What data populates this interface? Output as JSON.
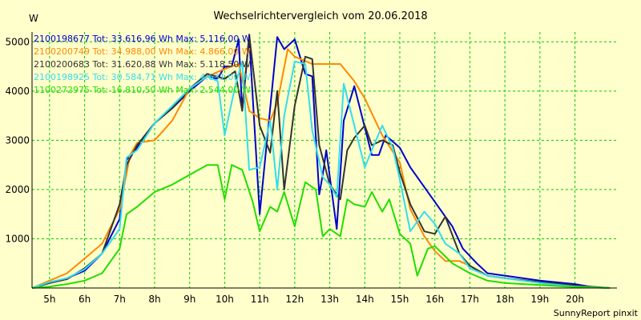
{
  "chart_data": {
    "type": "line",
    "title": "Wechselrichtervergleich vom 20.06.2018",
    "yunit": "W",
    "footer": "SunnyReport pinxit",
    "ylim": [
      0,
      5200
    ],
    "xlim": [
      4.5,
      21.2
    ],
    "grid": true,
    "legend_position": "top-left",
    "x_ticks": [
      5,
      6,
      7,
      8,
      9,
      10,
      11,
      12,
      13,
      14,
      15,
      16,
      17,
      18,
      19,
      20
    ],
    "x_tick_labels": [
      "5h",
      "6h",
      "7h",
      "8h",
      "9h",
      "10h",
      "11h",
      "12h",
      "13h",
      "14h",
      "15h",
      "16h",
      "17h",
      "18h",
      "19h",
      "20h"
    ],
    "y_ticks": [
      1000,
      2000,
      3000,
      4000,
      5000
    ],
    "y_tick_labels": [
      "1000",
      "2000",
      "3000",
      "4000",
      "5000"
    ],
    "series": [
      {
        "name": "2100198677 Tot: 33.616,96 Wh Max: 5.116,00 W",
        "color": "#0000cc",
        "points": [
          [
            4.5,
            0
          ],
          [
            5,
            100
          ],
          [
            5.5,
            200
          ],
          [
            6,
            350
          ],
          [
            6.5,
            700
          ],
          [
            7,
            1400
          ],
          [
            7.2,
            2600
          ],
          [
            7.5,
            2850
          ],
          [
            8,
            3350
          ],
          [
            8.5,
            3650
          ],
          [
            9,
            4000
          ],
          [
            9.5,
            4300
          ],
          [
            9.8,
            4250
          ],
          [
            10,
            4500
          ],
          [
            10.2,
            4500
          ],
          [
            10.4,
            5050
          ],
          [
            10.5,
            3600
          ],
          [
            10.7,
            5100
          ],
          [
            11,
            1500
          ],
          [
            11.5,
            5100
          ],
          [
            11.7,
            4850
          ],
          [
            12,
            5050
          ],
          [
            12.3,
            4350
          ],
          [
            12.5,
            4300
          ],
          [
            12.7,
            1900
          ],
          [
            12.8,
            2300
          ],
          [
            12.9,
            2800
          ],
          [
            13.2,
            1200
          ],
          [
            13.4,
            3400
          ],
          [
            13.7,
            4100
          ],
          [
            14.2,
            2700
          ],
          [
            14.4,
            2700
          ],
          [
            14.6,
            3100
          ],
          [
            15,
            2850
          ],
          [
            15.3,
            2450
          ],
          [
            15.6,
            2150
          ],
          [
            16,
            1750
          ],
          [
            16.3,
            1450
          ],
          [
            16.5,
            1250
          ],
          [
            16.8,
            800
          ],
          [
            17.2,
            500
          ],
          [
            17.5,
            300
          ],
          [
            18,
            250
          ],
          [
            19,
            150
          ],
          [
            20,
            80
          ],
          [
            20.5,
            20
          ],
          [
            21,
            0
          ]
        ]
      },
      {
        "name": "2100200749 Tot: 34.988,00 Wh Max: 4.866,00 W",
        "color": "#ff8800",
        "points": [
          [
            4.5,
            0
          ],
          [
            5,
            150
          ],
          [
            5.5,
            300
          ],
          [
            6,
            600
          ],
          [
            6.5,
            900
          ],
          [
            7,
            1600
          ],
          [
            7.3,
            2700
          ],
          [
            7.5,
            2950
          ],
          [
            8,
            3000
          ],
          [
            8.5,
            3400
          ],
          [
            9,
            4050
          ],
          [
            9.5,
            4300
          ],
          [
            10,
            4450
          ],
          [
            10.4,
            4550
          ],
          [
            10.7,
            3600
          ],
          [
            11,
            3450
          ],
          [
            11.3,
            3400
          ],
          [
            11.5,
            3750
          ],
          [
            11.8,
            4850
          ],
          [
            12,
            4700
          ],
          [
            12.5,
            4550
          ],
          [
            13,
            4550
          ],
          [
            13.3,
            4550
          ],
          [
            13.7,
            4200
          ],
          [
            14,
            3850
          ],
          [
            14.5,
            3100
          ],
          [
            15,
            2550
          ],
          [
            15.3,
            1600
          ],
          [
            15.7,
            1050
          ],
          [
            16,
            750
          ],
          [
            16.3,
            550
          ],
          [
            16.7,
            550
          ],
          [
            17,
            450
          ],
          [
            17.5,
            250
          ],
          [
            18,
            200
          ],
          [
            19,
            100
          ],
          [
            20,
            30
          ],
          [
            21,
            0
          ]
        ]
      },
      {
        "name": "2100200683 Tot: 31.620,88 Wh Max: 5.118,50 W",
        "color": "#333333",
        "points": [
          [
            4.5,
            0
          ],
          [
            5,
            100
          ],
          [
            5.5,
            180
          ],
          [
            6,
            400
          ],
          [
            6.5,
            700
          ],
          [
            7,
            1700
          ],
          [
            7.2,
            2500
          ],
          [
            7.5,
            2900
          ],
          [
            8,
            3350
          ],
          [
            8.5,
            3650
          ],
          [
            9,
            4050
          ],
          [
            9.5,
            4350
          ],
          [
            10,
            4250
          ],
          [
            10.3,
            4400
          ],
          [
            10.5,
            3600
          ],
          [
            10.7,
            5150
          ],
          [
            11,
            3300
          ],
          [
            11.3,
            2750
          ],
          [
            11.5,
            4000
          ],
          [
            11.7,
            2000
          ],
          [
            12,
            3700
          ],
          [
            12.3,
            4700
          ],
          [
            12.5,
            4650
          ],
          [
            12.7,
            2900
          ],
          [
            13,
            2100
          ],
          [
            13.3,
            1800
          ],
          [
            13.5,
            2800
          ],
          [
            13.7,
            3050
          ],
          [
            14,
            3300
          ],
          [
            14.2,
            2900
          ],
          [
            14.5,
            3000
          ],
          [
            14.8,
            2900
          ],
          [
            15,
            2350
          ],
          [
            15.3,
            1700
          ],
          [
            15.7,
            1150
          ],
          [
            16,
            1100
          ],
          [
            16.3,
            1450
          ],
          [
            16.7,
            700
          ],
          [
            17,
            450
          ],
          [
            17.5,
            250
          ],
          [
            18,
            200
          ],
          [
            19,
            120
          ],
          [
            20,
            50
          ],
          [
            21,
            0
          ]
        ]
      },
      {
        "name": "2100198925 Tot: 30.584,71 Wh Max: 4.631,00 W",
        "color": "#33ddee",
        "points": [
          [
            4.5,
            0
          ],
          [
            5,
            120
          ],
          [
            5.5,
            200
          ],
          [
            6,
            380
          ],
          [
            6.5,
            700
          ],
          [
            7,
            1200
          ],
          [
            7.2,
            2650
          ],
          [
            7.5,
            2800
          ],
          [
            8,
            3350
          ],
          [
            8.5,
            3700
          ],
          [
            9,
            4050
          ],
          [
            9.5,
            4300
          ],
          [
            9.8,
            4200
          ],
          [
            10,
            3100
          ],
          [
            10.3,
            4100
          ],
          [
            10.5,
            4600
          ],
          [
            10.7,
            2400
          ],
          [
            11,
            2450
          ],
          [
            11.3,
            3400
          ],
          [
            11.5,
            2000
          ],
          [
            11.7,
            3500
          ],
          [
            12,
            4600
          ],
          [
            12.3,
            4550
          ],
          [
            12.5,
            3200
          ],
          [
            12.8,
            2250
          ],
          [
            13,
            2100
          ],
          [
            13.2,
            1850
          ],
          [
            13.4,
            4150
          ],
          [
            13.7,
            3300
          ],
          [
            14,
            2450
          ],
          [
            14.2,
            2800
          ],
          [
            14.5,
            3300
          ],
          [
            14.8,
            2850
          ],
          [
            15,
            2200
          ],
          [
            15.3,
            1150
          ],
          [
            15.7,
            1550
          ],
          [
            16,
            1300
          ],
          [
            16.3,
            900
          ],
          [
            16.7,
            700
          ],
          [
            17,
            400
          ],
          [
            17.5,
            250
          ],
          [
            18,
            200
          ],
          [
            19,
            100
          ],
          [
            20,
            30
          ],
          [
            21,
            0
          ]
        ]
      },
      {
        "name": "1100272975 Tot: 16.810,50 Wh Max: 2.544,00 W",
        "color": "#22dd00",
        "points": [
          [
            4.5,
            0
          ],
          [
            5,
            30
          ],
          [
            5.5,
            80
          ],
          [
            6,
            150
          ],
          [
            6.5,
            300
          ],
          [
            7,
            800
          ],
          [
            7.2,
            1500
          ],
          [
            7.5,
            1650
          ],
          [
            8,
            1950
          ],
          [
            8.5,
            2100
          ],
          [
            9,
            2300
          ],
          [
            9.5,
            2500
          ],
          [
            9.8,
            2500
          ],
          [
            10,
            1800
          ],
          [
            10.2,
            2500
          ],
          [
            10.5,
            2400
          ],
          [
            10.8,
            1750
          ],
          [
            11,
            1150
          ],
          [
            11.3,
            1650
          ],
          [
            11.5,
            1550
          ],
          [
            11.7,
            1950
          ],
          [
            12,
            1250
          ],
          [
            12.3,
            2150
          ],
          [
            12.6,
            2000
          ],
          [
            12.8,
            1050
          ],
          [
            13,
            1200
          ],
          [
            13.3,
            1050
          ],
          [
            13.5,
            1800
          ],
          [
            13.7,
            1700
          ],
          [
            14,
            1650
          ],
          [
            14.2,
            1950
          ],
          [
            14.5,
            1550
          ],
          [
            14.7,
            1800
          ],
          [
            15,
            1100
          ],
          [
            15.3,
            900
          ],
          [
            15.5,
            250
          ],
          [
            15.8,
            800
          ],
          [
            16,
            850
          ],
          [
            16.5,
            500
          ],
          [
            17,
            300
          ],
          [
            17.5,
            150
          ],
          [
            18,
            100
          ],
          [
            19,
            60
          ],
          [
            20,
            20
          ],
          [
            21,
            0
          ]
        ]
      }
    ]
  }
}
